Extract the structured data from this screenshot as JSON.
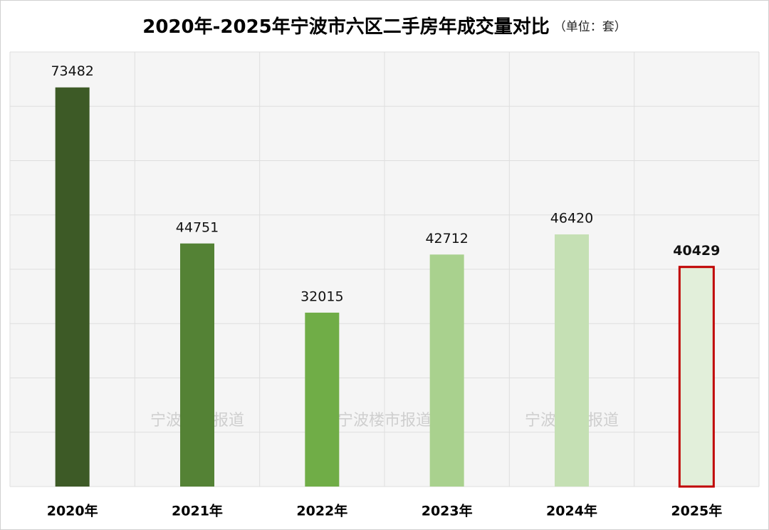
{
  "chart_data": {
    "type": "bar",
    "title": "2020年-2025年宁波市六区二手房年成交量对比",
    "subtitle": "（单位：套）",
    "watermark": "宁波楼市报道",
    "categories": [
      "2020年",
      "2021年",
      "2022年",
      "2023年",
      "2024年",
      "2025年"
    ],
    "values": [
      73482,
      44751,
      32015,
      42712,
      46420,
      40429
    ],
    "colors": [
      "#3d5a26",
      "#548235",
      "#70ad47",
      "#a9d18e",
      "#c5e0b4",
      "#e2efda"
    ],
    "stroke_colors": [
      null,
      null,
      null,
      null,
      null,
      "#c00000"
    ],
    "label_colors": [
      "#111111",
      "#111111",
      "#111111",
      "#111111",
      "#111111",
      "#c00000"
    ],
    "ylim": [
      0,
      80000
    ],
    "yticks": [
      0,
      10000,
      20000,
      30000,
      40000,
      50000,
      60000,
      70000,
      80000
    ],
    "grid": true
  }
}
